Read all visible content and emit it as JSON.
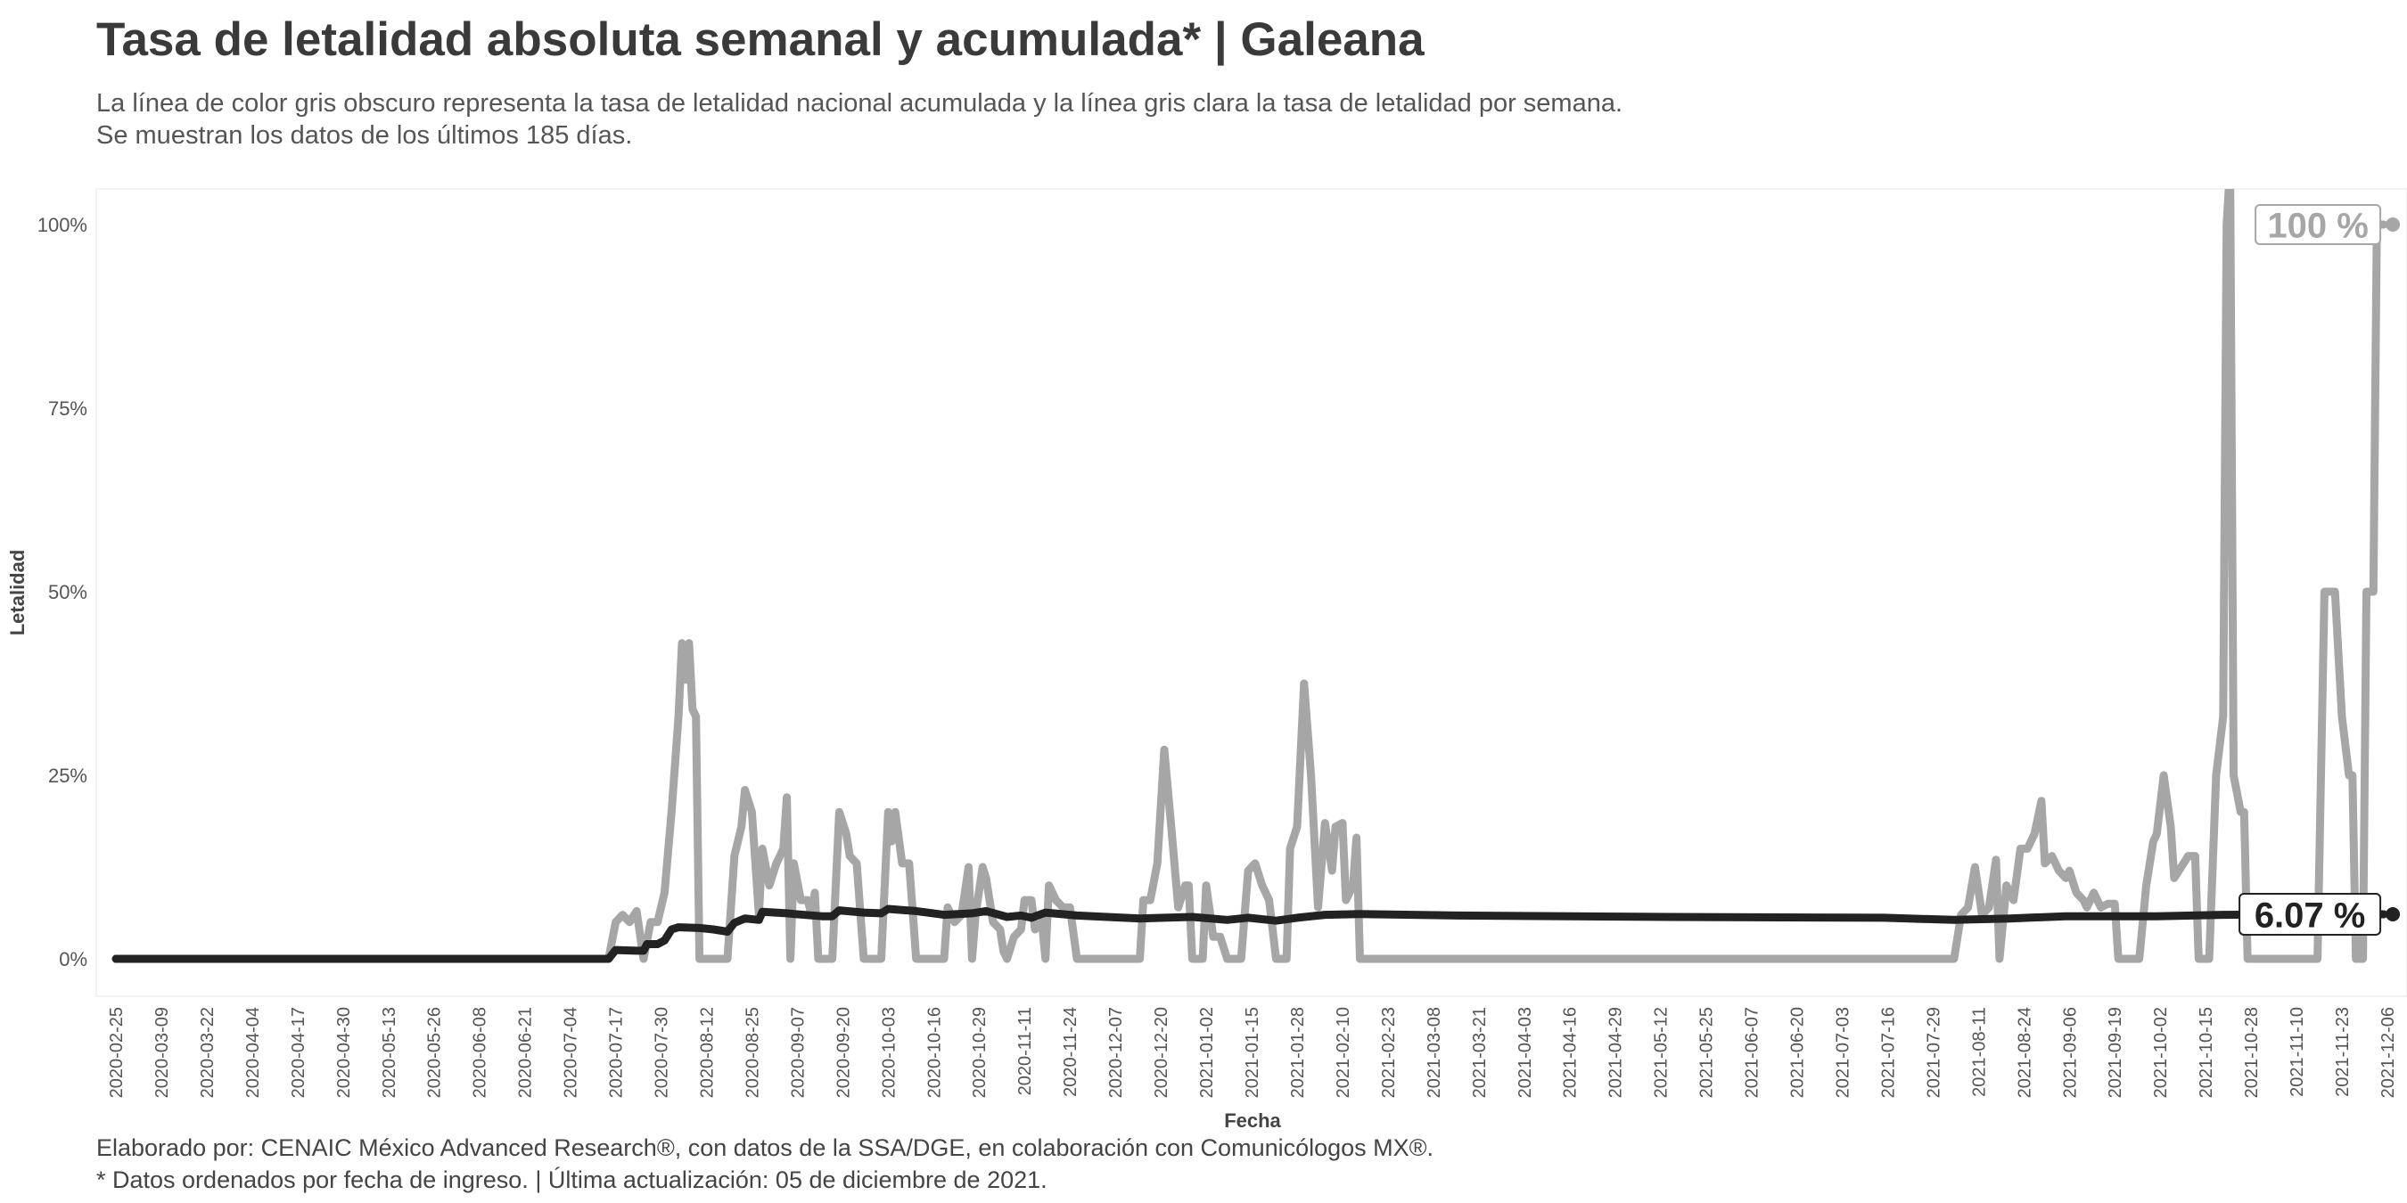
{
  "header": {
    "title": "Tasa de letalidad absoluta semanal y acumulada* | Galeana",
    "subtitle_line1": "La línea de color gris obscuro representa la tasa de letalidad nacional acumulada y la línea gris clara la tasa de letalidad por semana.",
    "subtitle_line2": "Se muestran los datos de los últimos 185 días."
  },
  "footer": {
    "caption_line1": "Elaborado por: CENAIC México Advanced Research®, con datos de la SSA/DGE, en colaboración con Comunicólogos MX®.",
    "caption_line2": "* Datos ordenados por fecha de ingreso. | Última actualización: 05 de diciembre de 2021."
  },
  "colors": {
    "weekly_line": "#a6a6a6",
    "cumulative_line": "#222222",
    "panel_border": "#e6e6e6",
    "label_box_weekly": "#a6a6a6",
    "label_box_cumulative": "#222222"
  },
  "chart_data": {
    "type": "line",
    "xlabel": "Fecha",
    "ylabel": "Letalidad",
    "ylim": [
      -5,
      105
    ],
    "y_ticks": [
      0,
      25,
      50,
      75,
      100
    ],
    "y_tick_labels": [
      "0%",
      "25%",
      "50%",
      "75%",
      "100%"
    ],
    "x_range": [
      "2020-02-21",
      "2021-12-08"
    ],
    "x_ticks": [
      "2020-02-25",
      "2020-03-09",
      "2020-03-22",
      "2020-04-04",
      "2020-04-17",
      "2020-04-30",
      "2020-05-13",
      "2020-05-26",
      "2020-06-08",
      "2020-06-21",
      "2020-07-04",
      "2020-07-17",
      "2020-07-30",
      "2020-08-12",
      "2020-08-25",
      "2020-09-07",
      "2020-09-20",
      "2020-10-03",
      "2020-10-16",
      "2020-10-29",
      "2020-11-11",
      "2020-11-24",
      "2020-12-07",
      "2020-12-20",
      "2021-01-02",
      "2021-01-15",
      "2021-01-28",
      "2021-02-10",
      "2021-02-23",
      "2021-03-08",
      "2021-03-21",
      "2021-04-03",
      "2021-04-16",
      "2021-04-29",
      "2021-05-12",
      "2021-05-25",
      "2021-06-07",
      "2021-06-20",
      "2021-07-03",
      "2021-07-16",
      "2021-07-29",
      "2021-08-11",
      "2021-08-24",
      "2021-09-06",
      "2021-09-19",
      "2021-10-02",
      "2021-10-15",
      "2021-10-28",
      "2021-11-10",
      "2021-11-23",
      "2021-12-06"
    ],
    "grid": false,
    "legend": "none",
    "end_labels": [
      {
        "series": "semanal",
        "text": "100 %"
      },
      {
        "series": "acumulada",
        "text": "6.07 %"
      }
    ],
    "series": [
      {
        "key": "semanal",
        "points": [
          [
            "2020-02-25",
            0
          ],
          [
            "2020-07-15",
            0
          ],
          [
            "2020-07-17",
            5
          ],
          [
            "2020-07-19",
            6
          ],
          [
            "2020-07-21",
            5
          ],
          [
            "2020-07-23",
            6.5
          ],
          [
            "2020-07-25",
            0
          ],
          [
            "2020-07-27",
            5
          ],
          [
            "2020-07-29",
            5
          ],
          [
            "2020-07-31",
            9
          ],
          [
            "2020-08-02",
            20
          ],
          [
            "2020-08-04",
            33
          ],
          [
            "2020-08-05",
            43
          ],
          [
            "2020-08-06",
            38
          ],
          [
            "2020-08-07",
            43
          ],
          [
            "2020-08-08",
            34
          ],
          [
            "2020-08-09",
            33
          ],
          [
            "2020-08-10",
            0
          ],
          [
            "2020-08-18",
            0
          ],
          [
            "2020-08-20",
            14
          ],
          [
            "2020-08-22",
            18
          ],
          [
            "2020-08-23",
            23
          ],
          [
            "2020-08-25",
            20
          ],
          [
            "2020-08-27",
            6
          ],
          [
            "2020-08-28",
            15
          ],
          [
            "2020-08-30",
            10
          ],
          [
            "2020-09-01",
            13
          ],
          [
            "2020-09-03",
            15
          ],
          [
            "2020-09-04",
            22
          ],
          [
            "2020-09-05",
            0
          ],
          [
            "2020-09-06",
            13
          ],
          [
            "2020-09-08",
            8
          ],
          [
            "2020-09-10",
            8
          ],
          [
            "2020-09-11",
            6
          ],
          [
            "2020-09-12",
            9
          ],
          [
            "2020-09-13",
            0
          ],
          [
            "2020-09-17",
            0
          ],
          [
            "2020-09-19",
            20
          ],
          [
            "2020-09-21",
            17
          ],
          [
            "2020-09-22",
            14
          ],
          [
            "2020-09-24",
            13
          ],
          [
            "2020-09-26",
            0
          ],
          [
            "2020-10-01",
            0
          ],
          [
            "2020-10-03",
            20
          ],
          [
            "2020-10-04",
            16
          ],
          [
            "2020-10-05",
            20
          ],
          [
            "2020-10-07",
            13
          ],
          [
            "2020-10-09",
            13
          ],
          [
            "2020-10-11",
            0
          ],
          [
            "2020-10-19",
            0
          ],
          [
            "2020-10-20",
            7
          ],
          [
            "2020-10-22",
            5
          ],
          [
            "2020-10-24",
            6
          ],
          [
            "2020-10-26",
            12.5
          ],
          [
            "2020-10-27",
            0
          ],
          [
            "2020-10-28",
            6
          ],
          [
            "2020-10-30",
            12.5
          ],
          [
            "2020-10-31",
            11
          ],
          [
            "2020-11-02",
            5
          ],
          [
            "2020-11-04",
            4
          ],
          [
            "2020-11-05",
            1
          ],
          [
            "2020-11-06",
            0
          ],
          [
            "2020-11-08",
            3
          ],
          [
            "2020-11-10",
            4
          ],
          [
            "2020-11-11",
            8
          ],
          [
            "2020-11-13",
            8
          ],
          [
            "2020-11-14",
            4
          ],
          [
            "2020-11-16",
            5
          ],
          [
            "2020-11-17",
            0
          ],
          [
            "2020-11-18",
            10
          ],
          [
            "2020-11-20",
            8
          ],
          [
            "2020-11-22",
            7
          ],
          [
            "2020-11-24",
            7
          ],
          [
            "2020-11-26",
            0
          ],
          [
            "2020-12-14",
            0
          ],
          [
            "2020-12-15",
            8
          ],
          [
            "2020-12-17",
            8
          ],
          [
            "2020-12-19",
            13
          ],
          [
            "2020-12-21",
            28.5
          ],
          [
            "2020-12-23",
            18
          ],
          [
            "2020-12-25",
            7
          ],
          [
            "2020-12-27",
            10
          ],
          [
            "2020-12-28",
            10
          ],
          [
            "2020-12-29",
            0
          ],
          [
            "2021-01-01",
            0
          ],
          [
            "2021-01-02",
            10
          ],
          [
            "2021-01-04",
            3
          ],
          [
            "2021-01-06",
            3
          ],
          [
            "2021-01-08",
            0
          ],
          [
            "2021-01-12",
            0
          ],
          [
            "2021-01-14",
            12
          ],
          [
            "2021-01-16",
            13
          ],
          [
            "2021-01-18",
            10
          ],
          [
            "2021-01-20",
            8
          ],
          [
            "2021-01-22",
            0
          ],
          [
            "2021-01-25",
            0
          ],
          [
            "2021-01-26",
            15
          ],
          [
            "2021-01-28",
            18
          ],
          [
            "2021-01-30",
            37.5
          ],
          [
            "2021-02-01",
            25
          ],
          [
            "2021-02-03",
            7
          ],
          [
            "2021-02-05",
            18.5
          ],
          [
            "2021-02-07",
            12
          ],
          [
            "2021-02-08",
            18
          ],
          [
            "2021-02-10",
            18.5
          ],
          [
            "2021-02-11",
            8
          ],
          [
            "2021-02-13",
            10
          ],
          [
            "2021-02-14",
            16.5
          ],
          [
            "2021-02-15",
            0
          ],
          [
            "2021-08-04",
            0
          ],
          [
            "2021-08-06",
            6
          ],
          [
            "2021-08-08",
            7
          ],
          [
            "2021-08-10",
            12.5
          ],
          [
            "2021-08-12",
            6
          ],
          [
            "2021-08-14",
            7
          ],
          [
            "2021-08-16",
            13.5
          ],
          [
            "2021-08-17",
            0
          ],
          [
            "2021-08-19",
            10
          ],
          [
            "2021-08-21",
            8
          ],
          [
            "2021-08-23",
            15
          ],
          [
            "2021-08-25",
            15
          ],
          [
            "2021-08-27",
            17
          ],
          [
            "2021-08-29",
            21.5
          ],
          [
            "2021-08-30",
            13
          ],
          [
            "2021-09-01",
            14
          ],
          [
            "2021-09-03",
            12
          ],
          [
            "2021-09-05",
            11
          ],
          [
            "2021-09-06",
            12
          ],
          [
            "2021-09-08",
            9
          ],
          [
            "2021-09-10",
            8
          ],
          [
            "2021-09-11",
            7
          ],
          [
            "2021-09-13",
            9
          ],
          [
            "2021-09-15",
            7
          ],
          [
            "2021-09-17",
            7.5
          ],
          [
            "2021-09-19",
            7.5
          ],
          [
            "2021-09-20",
            0
          ],
          [
            "2021-09-26",
            0
          ],
          [
            "2021-09-28",
            10
          ],
          [
            "2021-09-30",
            16
          ],
          [
            "2021-10-01",
            17
          ],
          [
            "2021-10-03",
            25
          ],
          [
            "2021-10-05",
            18
          ],
          [
            "2021-10-06",
            11
          ],
          [
            "2021-10-08",
            12.5
          ],
          [
            "2021-10-10",
            14
          ],
          [
            "2021-10-12",
            14
          ],
          [
            "2021-10-13",
            0
          ],
          [
            "2021-10-16",
            0
          ],
          [
            "2021-10-18",
            25
          ],
          [
            "2021-10-20",
            33
          ],
          [
            "2021-10-21",
            100
          ],
          [
            "2021-10-22",
            108
          ],
          [
            "2021-10-23",
            25
          ],
          [
            "2021-10-25",
            20
          ],
          [
            "2021-10-26",
            20
          ],
          [
            "2021-10-27",
            0
          ],
          [
            "2021-11-16",
            0
          ],
          [
            "2021-11-18",
            50
          ],
          [
            "2021-11-21",
            50
          ],
          [
            "2021-11-23",
            33
          ],
          [
            "2021-11-25",
            25
          ],
          [
            "2021-11-26",
            25
          ],
          [
            "2021-11-27",
            0
          ],
          [
            "2021-11-29",
            0
          ],
          [
            "2021-11-30",
            50
          ],
          [
            "2021-12-02",
            50
          ],
          [
            "2021-12-03",
            100
          ],
          [
            "2021-12-05",
            100
          ]
        ]
      },
      {
        "key": "acumulada",
        "points": [
          [
            "2020-02-25",
            0
          ],
          [
            "2020-07-15",
            0
          ],
          [
            "2020-07-17",
            1.2
          ],
          [
            "2020-07-23",
            1.1
          ],
          [
            "2020-07-25",
            1.1
          ],
          [
            "2020-07-26",
            2
          ],
          [
            "2020-07-29",
            2
          ],
          [
            "2020-07-31",
            2.5
          ],
          [
            "2020-08-02",
            4
          ],
          [
            "2020-08-04",
            4.3
          ],
          [
            "2020-08-10",
            4.2
          ],
          [
            "2020-08-14",
            4
          ],
          [
            "2020-08-18",
            3.7
          ],
          [
            "2020-08-20",
            4.9
          ],
          [
            "2020-08-23",
            5.5
          ],
          [
            "2020-08-27",
            5.3
          ],
          [
            "2020-08-28",
            6.4
          ],
          [
            "2020-09-04",
            6.2
          ],
          [
            "2020-09-06",
            6.1
          ],
          [
            "2020-09-14",
            5.8
          ],
          [
            "2020-09-17",
            5.8
          ],
          [
            "2020-09-19",
            6.6
          ],
          [
            "2020-09-26",
            6.3
          ],
          [
            "2020-10-01",
            6.2
          ],
          [
            "2020-10-03",
            6.8
          ],
          [
            "2020-10-11",
            6.5
          ],
          [
            "2020-10-19",
            6
          ],
          [
            "2020-10-27",
            6.2
          ],
          [
            "2020-10-31",
            6.5
          ],
          [
            "2020-11-06",
            5.7
          ],
          [
            "2020-11-10",
            5.9
          ],
          [
            "2020-11-13",
            5.6
          ],
          [
            "2020-11-17",
            6.3
          ],
          [
            "2020-11-26",
            5.9
          ],
          [
            "2020-12-14",
            5.5
          ],
          [
            "2020-12-21",
            5.6
          ],
          [
            "2020-12-29",
            5.7
          ],
          [
            "2021-01-08",
            5.3
          ],
          [
            "2021-01-14",
            5.6
          ],
          [
            "2021-01-22",
            5.2
          ],
          [
            "2021-01-28",
            5.6
          ],
          [
            "2021-02-05",
            6
          ],
          [
            "2021-02-15",
            6.1
          ],
          [
            "2021-03-15",
            5.9
          ],
          [
            "2021-05-15",
            5.7
          ],
          [
            "2021-07-15",
            5.6
          ],
          [
            "2021-08-04",
            5.3
          ],
          [
            "2021-08-20",
            5.5
          ],
          [
            "2021-09-05",
            5.8
          ],
          [
            "2021-10-01",
            5.8
          ],
          [
            "2021-10-20",
            6
          ],
          [
            "2021-11-15",
            6.05
          ],
          [
            "2021-12-05",
            6.07
          ]
        ]
      }
    ]
  }
}
